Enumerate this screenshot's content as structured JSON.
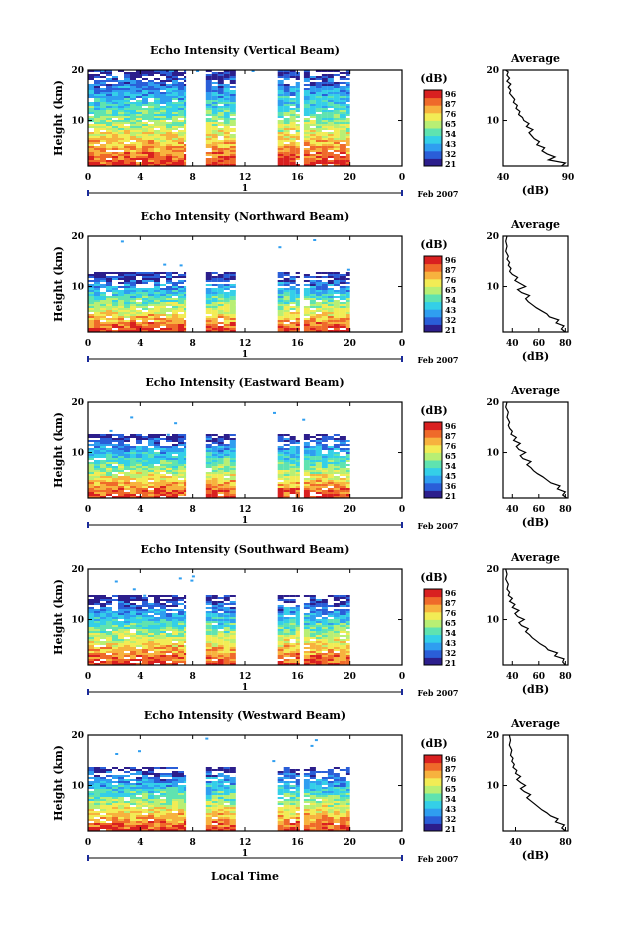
{
  "palette": [
    "#2c1e8c",
    "#2a5ed8",
    "#2f9ef0",
    "#34cfe8",
    "#5fe3b0",
    "#b8ef74",
    "#f2ec55",
    "#f7b23e",
    "#ef6a2a",
    "#d92020"
  ],
  "xlabel_bottom": "Local Time",
  "chart_data": [
    {
      "type": "heatmap",
      "title": "Echo Intensity (Vertical Beam)",
      "ylabel": "Height (km)",
      "y_ticks": [
        "20",
        "10"
      ],
      "x_ticks": [
        "0",
        "4",
        "8",
        "12",
        "16",
        "20",
        "0"
      ],
      "day_label": "1",
      "month_label": "Feb 2007",
      "xlim": [
        0,
        24
      ],
      "ylim": [
        1,
        20
      ],
      "data_intervals_hours": [
        [
          0,
          7.5
        ],
        [
          9,
          11.3
        ],
        [
          14.5,
          16.2
        ],
        [
          16.5,
          20
        ]
      ],
      "data_top_km": 20,
      "colorbar": {
        "unit": "(dB)",
        "ticks": [
          "96",
          "87",
          "76",
          "65",
          "54",
          "43",
          "32",
          "21"
        ]
      },
      "average": {
        "title": "Average",
        "xlabel": "(dB)",
        "x_ticks": [
          "40",
          "90"
        ],
        "xlim": [
          40,
          90
        ],
        "y_ticks": [
          "20",
          "10"
        ],
        "profile": [
          [
            85,
            1
          ],
          [
            88,
            1.6
          ],
          [
            75,
            2.2
          ],
          [
            80,
            2.8
          ],
          [
            74,
            3.4
          ],
          [
            70,
            4
          ],
          [
            72,
            4.6
          ],
          [
            66,
            5.2
          ],
          [
            68,
            5.8
          ],
          [
            64,
            6.4
          ],
          [
            62,
            7
          ],
          [
            60,
            7.6
          ],
          [
            63,
            8.2
          ],
          [
            58,
            8.8
          ],
          [
            60,
            9.4
          ],
          [
            56,
            10
          ],
          [
            55,
            10.6
          ],
          [
            52,
            11.2
          ],
          [
            53,
            11.8
          ],
          [
            50,
            12.4
          ],
          [
            51,
            13
          ],
          [
            48,
            13.6
          ],
          [
            49,
            14.2
          ],
          [
            47,
            14.8
          ],
          [
            45,
            15.4
          ],
          [
            46,
            16
          ],
          [
            44,
            16.6
          ],
          [
            46,
            17.2
          ],
          [
            43,
            17.8
          ],
          [
            45,
            18.4
          ],
          [
            43,
            19
          ],
          [
            44,
            19.6
          ],
          [
            42,
            20
          ]
        ]
      }
    },
    {
      "type": "heatmap",
      "title": "Echo Intensity (Northward Beam)",
      "ylabel": "Height (km)",
      "y_ticks": [
        "20",
        "10"
      ],
      "x_ticks": [
        "0",
        "4",
        "8",
        "12",
        "16",
        "20",
        "0"
      ],
      "day_label": "1",
      "month_label": "Feb 2007",
      "xlim": [
        0,
        24
      ],
      "ylim": [
        1,
        20
      ],
      "data_intervals_hours": [
        [
          0,
          7.5
        ],
        [
          9,
          11.3
        ],
        [
          14.5,
          16.2
        ],
        [
          16.5,
          20
        ]
      ],
      "data_top_km": 12.5,
      "colorbar": {
        "unit": "(dB)",
        "ticks": [
          "96",
          "87",
          "76",
          "65",
          "54",
          "43",
          "32",
          "21"
        ]
      },
      "average": {
        "title": "Average",
        "xlabel": "(dB)",
        "x_ticks": [
          "40",
          "60",
          "80"
        ],
        "xlim": [
          33,
          82
        ],
        "y_ticks": [
          "20",
          "10"
        ],
        "profile": [
          [
            80,
            1
          ],
          [
            77,
            1.6
          ],
          [
            79,
            2.2
          ],
          [
            73,
            2.8
          ],
          [
            75,
            3.4
          ],
          [
            68,
            4
          ],
          [
            66,
            4.6
          ],
          [
            62,
            5.2
          ],
          [
            58,
            5.8
          ],
          [
            55,
            6.4
          ],
          [
            52,
            7
          ],
          [
            50,
            7.6
          ],
          [
            53,
            8.2
          ],
          [
            47,
            8.8
          ],
          [
            44,
            9.4
          ],
          [
            50,
            10
          ],
          [
            46,
            10.6
          ],
          [
            42,
            11.2
          ],
          [
            44,
            11.8
          ],
          [
            40,
            12.4
          ],
          [
            38,
            13
          ],
          [
            39,
            13.6
          ],
          [
            37,
            14.2
          ],
          [
            38,
            14.8
          ],
          [
            36,
            15.4
          ],
          [
            37,
            16
          ],
          [
            35,
            17
          ],
          [
            36,
            18
          ],
          [
            35,
            19
          ],
          [
            36,
            20
          ]
        ]
      }
    },
    {
      "type": "heatmap",
      "title": "Echo Intensity (Eastward Beam)",
      "ylabel": "Height (km)",
      "y_ticks": [
        "20",
        "10"
      ],
      "x_ticks": [
        "0",
        "4",
        "8",
        "12",
        "16",
        "20",
        "0"
      ],
      "day_label": "1",
      "month_label": "Feb 2007",
      "xlim": [
        0,
        24
      ],
      "ylim": [
        1,
        20
      ],
      "data_intervals_hours": [
        [
          0,
          7.5
        ],
        [
          9,
          11.3
        ],
        [
          14.5,
          16.2
        ],
        [
          16.5,
          20
        ]
      ],
      "data_top_km": 13.5,
      "colorbar": {
        "unit": "(dB)",
        "ticks": [
          "96",
          "87",
          "76",
          "65",
          "54",
          "45",
          "36",
          "21"
        ]
      },
      "average": {
        "title": "Average",
        "xlabel": "(dB)",
        "x_ticks": [
          "40",
          "60",
          "80"
        ],
        "xlim": [
          33,
          82
        ],
        "y_ticks": [
          "20",
          "10"
        ],
        "profile": [
          [
            81,
            1
          ],
          [
            78,
            1.6
          ],
          [
            80,
            2.2
          ],
          [
            74,
            2.8
          ],
          [
            76,
            3.4
          ],
          [
            69,
            4
          ],
          [
            66,
            4.6
          ],
          [
            63,
            5.2
          ],
          [
            59,
            5.8
          ],
          [
            56,
            6.4
          ],
          [
            54,
            7
          ],
          [
            51,
            7.6
          ],
          [
            54,
            8.2
          ],
          [
            48,
            8.8
          ],
          [
            46,
            9.4
          ],
          [
            50,
            10
          ],
          [
            45,
            10.6
          ],
          [
            43,
            11.2
          ],
          [
            46,
            11.8
          ],
          [
            41,
            12.4
          ],
          [
            43,
            13
          ],
          [
            39,
            13.6
          ],
          [
            40,
            14.2
          ],
          [
            38,
            14.8
          ],
          [
            37,
            15.4
          ],
          [
            38,
            16
          ],
          [
            36,
            17
          ],
          [
            37,
            18
          ],
          [
            35,
            19
          ],
          [
            36,
            20
          ]
        ]
      }
    },
    {
      "type": "heatmap",
      "title": "Echo Intensity (Southward Beam)",
      "ylabel": "Height (km)",
      "y_ticks": [
        "20",
        "10"
      ],
      "x_ticks": [
        "0",
        "4",
        "8",
        "12",
        "16",
        "20",
        "0"
      ],
      "day_label": "1",
      "month_label": "Feb 2007",
      "xlim": [
        0,
        24
      ],
      "ylim": [
        1,
        20
      ],
      "data_intervals_hours": [
        [
          0,
          7.5
        ],
        [
          9,
          11.3
        ],
        [
          14.5,
          16.2
        ],
        [
          16.5,
          20
        ]
      ],
      "data_top_km": 14.5,
      "colorbar": {
        "unit": "(dB)",
        "ticks": [
          "96",
          "87",
          "76",
          "65",
          "54",
          "43",
          "32",
          "21"
        ]
      },
      "average": {
        "title": "Average",
        "xlabel": "(dB)",
        "x_ticks": [
          "40",
          "60",
          "80"
        ],
        "xlim": [
          33,
          82
        ],
        "y_ticks": [
          "20",
          "10"
        ],
        "profile": [
          [
            80,
            1
          ],
          [
            78,
            1.6
          ],
          [
            79,
            2.2
          ],
          [
            72,
            2.8
          ],
          [
            74,
            3.4
          ],
          [
            67,
            4
          ],
          [
            65,
            4.6
          ],
          [
            61,
            5.2
          ],
          [
            58,
            5.8
          ],
          [
            55,
            6.4
          ],
          [
            53,
            7
          ],
          [
            50,
            7.6
          ],
          [
            52,
            8.2
          ],
          [
            47,
            8.8
          ],
          [
            45,
            9.4
          ],
          [
            49,
            10
          ],
          [
            44,
            10.6
          ],
          [
            42,
            11.2
          ],
          [
            45,
            11.8
          ],
          [
            40,
            12.4
          ],
          [
            42,
            13
          ],
          [
            38,
            13.6
          ],
          [
            40,
            14.2
          ],
          [
            37,
            14.8
          ],
          [
            38,
            15.4
          ],
          [
            36,
            16
          ],
          [
            37,
            17
          ],
          [
            35,
            18
          ],
          [
            36,
            19
          ],
          [
            35,
            20
          ]
        ]
      }
    },
    {
      "type": "heatmap",
      "title": "Echo Intensity (Westward Beam)",
      "ylabel": "Height (km)",
      "y_ticks": [
        "20",
        "10"
      ],
      "x_ticks": [
        "0",
        "4",
        "8",
        "12",
        "16",
        "20",
        "0"
      ],
      "day_label": "1",
      "month_label": "Feb 2007",
      "xlim": [
        0,
        24
      ],
      "ylim": [
        1,
        20
      ],
      "data_intervals_hours": [
        [
          0,
          7.5
        ],
        [
          9,
          11.3
        ],
        [
          14.5,
          16.2
        ],
        [
          16.5,
          20
        ]
      ],
      "data_top_km": 13.5,
      "colorbar": {
        "unit": "(dB)",
        "ticks": [
          "96",
          "87",
          "76",
          "65",
          "54",
          "43",
          "32",
          "21"
        ]
      },
      "average": {
        "title": "Average",
        "xlabel": "(dB)",
        "x_ticks": [
          "40",
          "80"
        ],
        "xlim": [
          30,
          82
        ],
        "y_ticks": [
          "20",
          "10"
        ],
        "profile": [
          [
            80,
            1
          ],
          [
            77,
            1.6
          ],
          [
            79,
            2.2
          ],
          [
            72,
            2.8
          ],
          [
            74,
            3.4
          ],
          [
            68,
            4
          ],
          [
            65,
            4.6
          ],
          [
            61,
            5.2
          ],
          [
            58,
            5.8
          ],
          [
            55,
            6.4
          ],
          [
            52,
            7
          ],
          [
            49,
            7.6
          ],
          [
            52,
            8.2
          ],
          [
            47,
            8.8
          ],
          [
            44,
            9.4
          ],
          [
            48,
            10
          ],
          [
            44,
            10.6
          ],
          [
            41,
            11.2
          ],
          [
            44,
            11.8
          ],
          [
            40,
            12.4
          ],
          [
            41,
            13
          ],
          [
            38,
            13.6
          ],
          [
            39,
            14.2
          ],
          [
            37,
            14.8
          ],
          [
            38,
            15.4
          ],
          [
            36,
            16
          ],
          [
            37,
            17
          ],
          [
            35,
            18
          ],
          [
            36,
            19
          ],
          [
            35,
            20
          ]
        ]
      }
    }
  ]
}
